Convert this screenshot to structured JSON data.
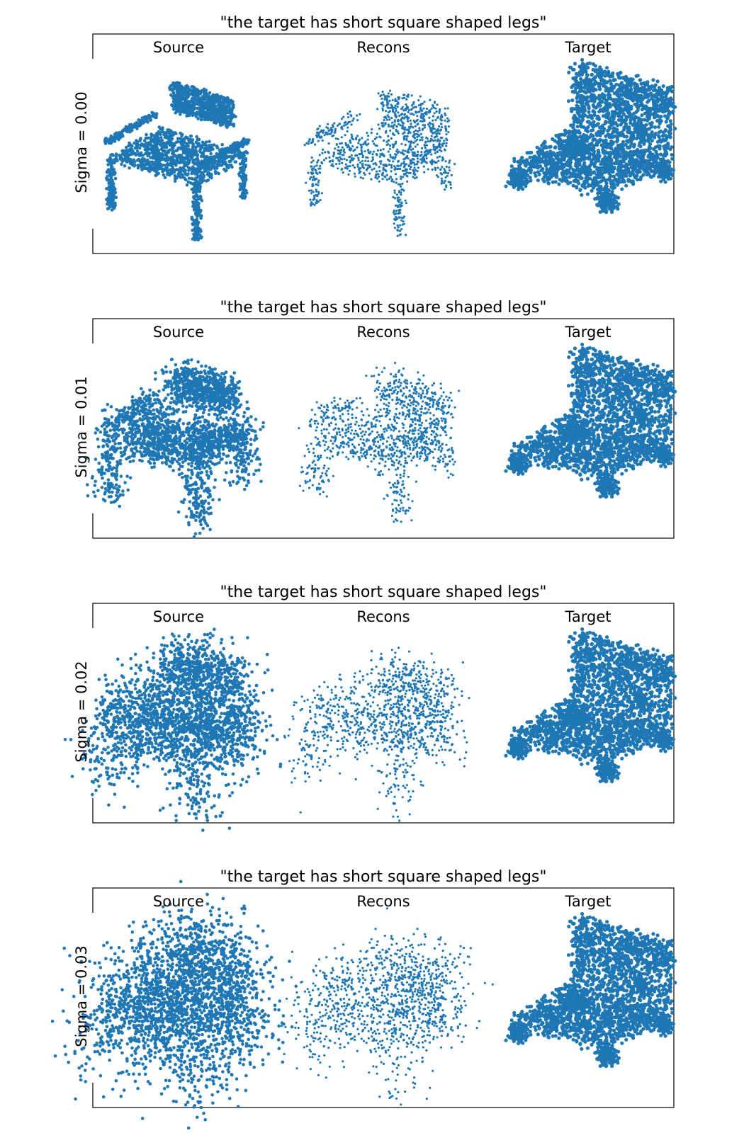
{
  "figure": {
    "accent_color": "#1f77b4",
    "axes_visible": false,
    "grid": false
  },
  "chart_data": [
    {
      "type": "scatter",
      "title": "\"the target has short square shaped legs\"",
      "ylabel": "Sigma = 0.00",
      "sigma": 0.0,
      "columns": [
        "Source",
        "Recons",
        "Target"
      ],
      "series": [
        {
          "name": "Source",
          "values": []
        },
        {
          "name": "Recons",
          "values": []
        },
        {
          "name": "Target",
          "values": []
        }
      ]
    },
    {
      "type": "scatter",
      "title": "\"the target has short square shaped legs\"",
      "ylabel": "Sigma = 0.01",
      "sigma": 0.01,
      "columns": [
        "Source",
        "Recons",
        "Target"
      ],
      "series": [
        {
          "name": "Source",
          "values": []
        },
        {
          "name": "Recons",
          "values": []
        },
        {
          "name": "Target",
          "values": []
        }
      ]
    },
    {
      "type": "scatter",
      "title": "\"the target has short square shaped legs\"",
      "ylabel": "Sigma = 0.02",
      "sigma": 0.02,
      "columns": [
        "Source",
        "Recons",
        "Target"
      ],
      "series": [
        {
          "name": "Source",
          "values": []
        },
        {
          "name": "Recons",
          "values": []
        },
        {
          "name": "Target",
          "values": []
        }
      ]
    },
    {
      "type": "scatter",
      "title": "\"the target has short square shaped legs\"",
      "ylabel": "Sigma = 0.03",
      "sigma": 0.03,
      "columns": [
        "Source",
        "Recons",
        "Target"
      ],
      "series": [
        {
          "name": "Source",
          "values": []
        },
        {
          "name": "Recons",
          "values": []
        },
        {
          "name": "Target",
          "values": []
        }
      ]
    }
  ]
}
